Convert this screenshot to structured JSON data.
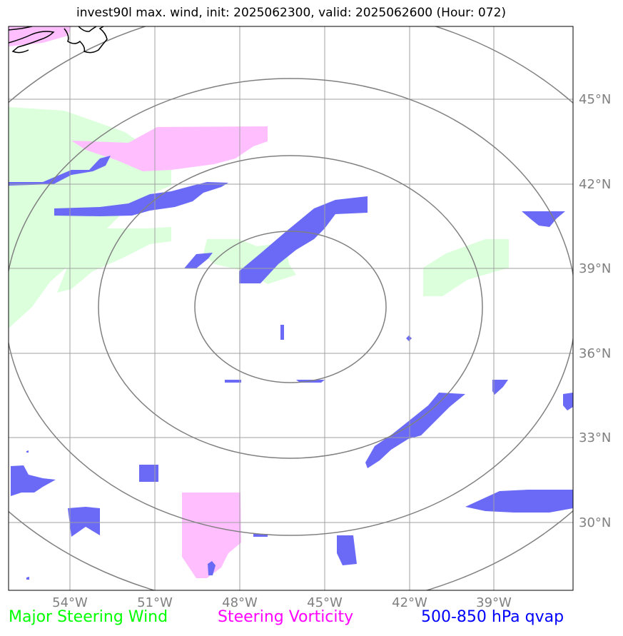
{
  "title": "invest90l max. wind, init: 2025062300, valid: 2025062600 (Hour: 072)",
  "x_ticks": [
    "54°W",
    "51°W",
    "48°W",
    "45°W",
    "42°W",
    "39°W"
  ],
  "y_ticks": [
    "45°N",
    "42°N",
    "39°N",
    "36°N",
    "33°N",
    "30°N"
  ],
  "legend": [
    {
      "label": "Major Steering Wind",
      "color": "#00ff00"
    },
    {
      "label": "Steering Vorticity",
      "color": "#ff00ff"
    },
    {
      "label": "500-850 hPa qvap",
      "color": "#0000ff"
    }
  ],
  "colors": {
    "steering_wind_fill": "#dcffdc",
    "vorticity_fill": "#ffbfff",
    "qvap_fill": "#6a6af7",
    "grid": "#a0a0a0",
    "range_rings": "#808080",
    "coastline": "#000000"
  }
}
